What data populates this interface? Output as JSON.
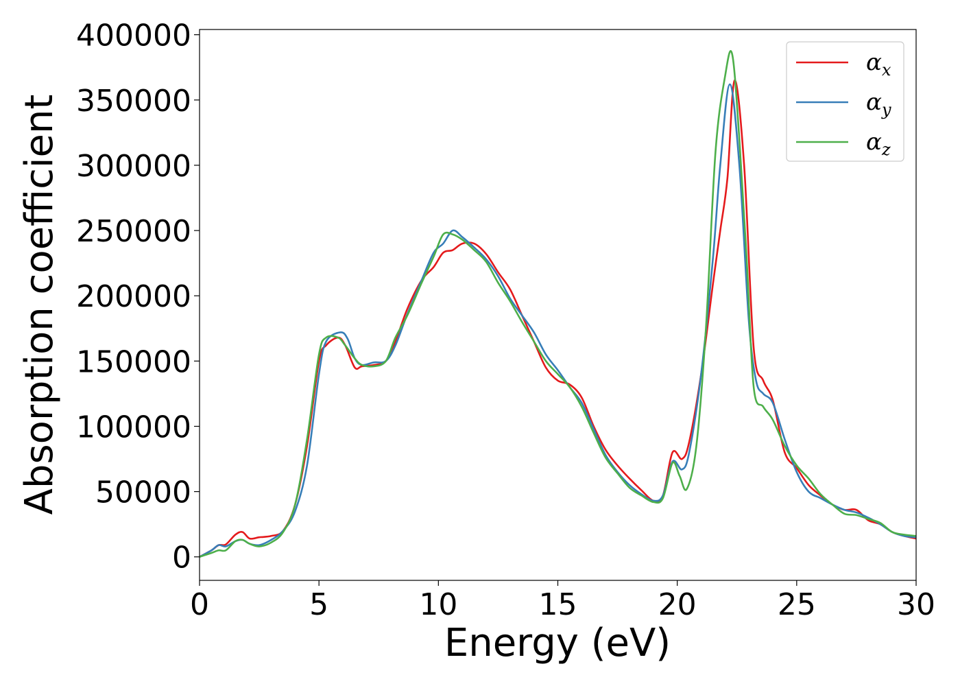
{
  "chart_data": {
    "type": "line",
    "xlabel": "Energy (eV)",
    "ylabel": "Absorption coefficient",
    "xlim": [
      0,
      30
    ],
    "ylim": [
      -18000,
      404000
    ],
    "xticks": [
      "0",
      "5",
      "10",
      "15",
      "20",
      "25",
      "30"
    ],
    "xtick_values": [
      0,
      5,
      10,
      15,
      20,
      25,
      30
    ],
    "yticks": [
      "0",
      "50000",
      "100000",
      "150000",
      "200000",
      "250000",
      "300000",
      "350000",
      "400000"
    ],
    "ytick_values": [
      0,
      50000,
      100000,
      150000,
      200000,
      250000,
      300000,
      350000,
      400000
    ],
    "grid": false,
    "legend_position": "top-right",
    "series": [
      {
        "name": "α",
        "subscript": "x",
        "color": "#e41a1c",
        "points": [
          [
            0,
            0
          ],
          [
            0.5,
            5000
          ],
          [
            0.8,
            9000
          ],
          [
            1.1,
            9500
          ],
          [
            1.5,
            17000
          ],
          [
            1.8,
            19000
          ],
          [
            2.1,
            14000
          ],
          [
            2.5,
            15000
          ],
          [
            3,
            16000
          ],
          [
            3.5,
            20000
          ],
          [
            4,
            40000
          ],
          [
            4.5,
            85000
          ],
          [
            5,
            150000
          ],
          [
            5.3,
            162000
          ],
          [
            5.8,
            168000
          ],
          [
            6.1,
            162000
          ],
          [
            6.5,
            145000
          ],
          [
            6.8,
            146000
          ],
          [
            7.3,
            147000
          ],
          [
            7.8,
            150000
          ],
          [
            8.2,
            165000
          ],
          [
            8.7,
            190000
          ],
          [
            9.3,
            212000
          ],
          [
            9.8,
            222000
          ],
          [
            10.2,
            233000
          ],
          [
            10.6,
            235000
          ],
          [
            11,
            240000
          ],
          [
            11.5,
            240000
          ],
          [
            12,
            232000
          ],
          [
            12.5,
            218000
          ],
          [
            13,
            205000
          ],
          [
            13.5,
            185000
          ],
          [
            14,
            165000
          ],
          [
            14.5,
            145000
          ],
          [
            15,
            135000
          ],
          [
            15.5,
            132000
          ],
          [
            16,
            122000
          ],
          [
            16.5,
            100000
          ],
          [
            17,
            82000
          ],
          [
            17.5,
            70000
          ],
          [
            18,
            60000
          ],
          [
            18.5,
            51000
          ],
          [
            19,
            43000
          ],
          [
            19.4,
            47000
          ],
          [
            19.8,
            80000
          ],
          [
            20.2,
            75000
          ],
          [
            20.5,
            88000
          ],
          [
            21,
            140000
          ],
          [
            21.5,
            210000
          ],
          [
            21.8,
            250000
          ],
          [
            22.1,
            290000
          ],
          [
            22.4,
            365000
          ],
          [
            22.8,
            300000
          ],
          [
            23.2,
            160000
          ],
          [
            23.6,
            135000
          ],
          [
            24,
            120000
          ],
          [
            24.5,
            80000
          ],
          [
            25,
            68000
          ],
          [
            25.5,
            55000
          ],
          [
            26,
            47000
          ],
          [
            26.5,
            40000
          ],
          [
            27,
            36000
          ],
          [
            27.5,
            36000
          ],
          [
            28,
            28000
          ],
          [
            28.5,
            25000
          ],
          [
            29,
            19000
          ],
          [
            29.5,
            16000
          ],
          [
            30,
            14000
          ]
        ]
      },
      {
        "name": "α",
        "subscript": "y",
        "color": "#377eb8",
        "points": [
          [
            0,
            0
          ],
          [
            0.5,
            5000
          ],
          [
            0.8,
            9000
          ],
          [
            1.1,
            8000
          ],
          [
            1.5,
            12000
          ],
          [
            1.8,
            13000
          ],
          [
            2.1,
            10000
          ],
          [
            2.5,
            9000
          ],
          [
            3,
            13000
          ],
          [
            3.5,
            20000
          ],
          [
            4,
            35000
          ],
          [
            4.5,
            70000
          ],
          [
            5,
            140000
          ],
          [
            5.3,
            165000
          ],
          [
            5.9,
            172000
          ],
          [
            6.2,
            167000
          ],
          [
            6.5,
            152000
          ],
          [
            6.8,
            147000
          ],
          [
            7.3,
            149000
          ],
          [
            7.8,
            150000
          ],
          [
            8.2,
            162000
          ],
          [
            8.7,
            186000
          ],
          [
            9.3,
            212000
          ],
          [
            9.8,
            233000
          ],
          [
            10.2,
            240000
          ],
          [
            10.6,
            250000
          ],
          [
            11,
            245000
          ],
          [
            11.5,
            237000
          ],
          [
            12,
            228000
          ],
          [
            12.5,
            215000
          ],
          [
            13,
            198000
          ],
          [
            13.5,
            185000
          ],
          [
            14,
            172000
          ],
          [
            14.5,
            155000
          ],
          [
            15,
            143000
          ],
          [
            15.5,
            130000
          ],
          [
            16,
            118000
          ],
          [
            16.5,
            98000
          ],
          [
            17,
            78000
          ],
          [
            17.5,
            65000
          ],
          [
            18,
            55000
          ],
          [
            18.5,
            48000
          ],
          [
            19,
            43000
          ],
          [
            19.4,
            47000
          ],
          [
            19.8,
            73000
          ],
          [
            20.2,
            67000
          ],
          [
            20.5,
            80000
          ],
          [
            21,
            140000
          ],
          [
            21.5,
            230000
          ],
          [
            21.8,
            300000
          ],
          [
            22.2,
            362000
          ],
          [
            22.6,
            300000
          ],
          [
            23,
            180000
          ],
          [
            23.3,
            135000
          ],
          [
            23.6,
            125000
          ],
          [
            24,
            118000
          ],
          [
            24.5,
            90000
          ],
          [
            25,
            65000
          ],
          [
            25.5,
            50000
          ],
          [
            26,
            45000
          ],
          [
            26.5,
            40000
          ],
          [
            27,
            36000
          ],
          [
            27.5,
            34000
          ],
          [
            28,
            30000
          ],
          [
            28.5,
            25000
          ],
          [
            29,
            19000
          ],
          [
            29.5,
            16000
          ],
          [
            30,
            15000
          ]
        ]
      },
      {
        "name": "α",
        "subscript": "z",
        "color": "#4daf4a",
        "points": [
          [
            0,
            0
          ],
          [
            0.5,
            3000
          ],
          [
            0.8,
            5000
          ],
          [
            1.1,
            5000
          ],
          [
            1.5,
            12000
          ],
          [
            1.8,
            13000
          ],
          [
            2.1,
            10000
          ],
          [
            2.5,
            8000
          ],
          [
            3,
            11000
          ],
          [
            3.5,
            19000
          ],
          [
            4,
            40000
          ],
          [
            4.5,
            90000
          ],
          [
            5,
            155000
          ],
          [
            5.3,
            168000
          ],
          [
            5.8,
            168000
          ],
          [
            6.1,
            162000
          ],
          [
            6.5,
            152000
          ],
          [
            6.8,
            147000
          ],
          [
            7.3,
            146000
          ],
          [
            7.8,
            150000
          ],
          [
            8.2,
            168000
          ],
          [
            8.7,
            185000
          ],
          [
            9.3,
            210000
          ],
          [
            9.8,
            230000
          ],
          [
            10.2,
            247000
          ],
          [
            10.6,
            247000
          ],
          [
            11,
            243000
          ],
          [
            11.5,
            235000
          ],
          [
            12,
            226000
          ],
          [
            12.5,
            210000
          ],
          [
            13,
            196000
          ],
          [
            13.5,
            180000
          ],
          [
            14,
            165000
          ],
          [
            14.5,
            150000
          ],
          [
            15,
            140000
          ],
          [
            15.5,
            130000
          ],
          [
            16,
            115000
          ],
          [
            16.5,
            95000
          ],
          [
            17,
            76000
          ],
          [
            17.5,
            64000
          ],
          [
            18,
            53000
          ],
          [
            18.5,
            47000
          ],
          [
            19,
            42000
          ],
          [
            19.4,
            45000
          ],
          [
            19.8,
            72000
          ],
          [
            20.1,
            62000
          ],
          [
            20.4,
            52000
          ],
          [
            20.8,
            85000
          ],
          [
            21.2,
            175000
          ],
          [
            21.6,
            310000
          ],
          [
            22,
            368000
          ],
          [
            22.3,
            385000
          ],
          [
            22.6,
            320000
          ],
          [
            22.9,
            230000
          ],
          [
            23.2,
            130000
          ],
          [
            23.6,
            115000
          ],
          [
            24,
            105000
          ],
          [
            24.5,
            85000
          ],
          [
            25,
            70000
          ],
          [
            25.5,
            60000
          ],
          [
            26,
            48000
          ],
          [
            26.5,
            40000
          ],
          [
            27,
            33000
          ],
          [
            27.5,
            32000
          ],
          [
            28,
            29000
          ],
          [
            28.5,
            26000
          ],
          [
            29,
            19000
          ],
          [
            29.5,
            17000
          ],
          [
            30,
            16000
          ]
        ]
      }
    ]
  }
}
